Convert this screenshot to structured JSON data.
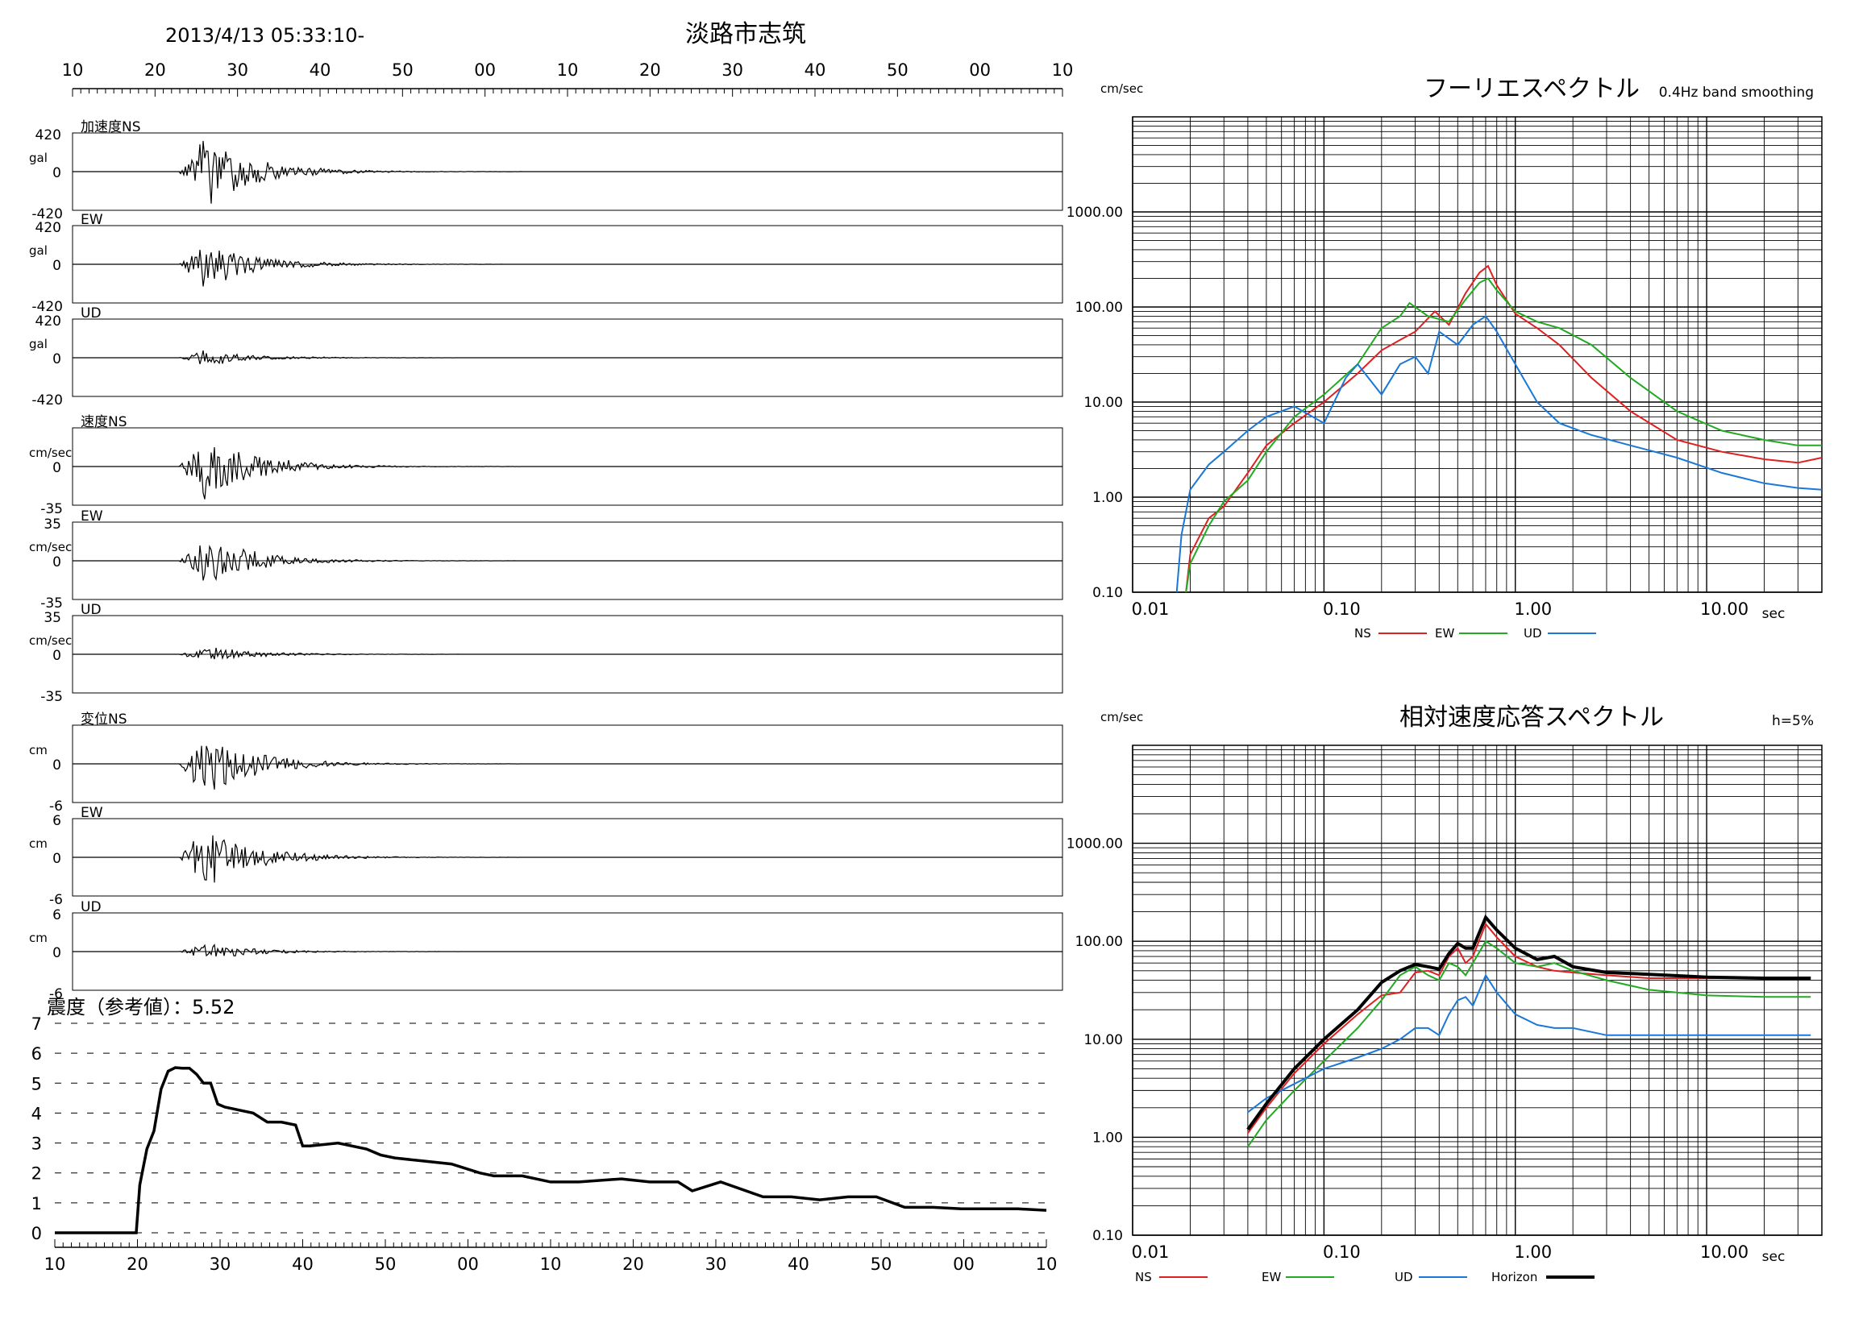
{
  "header": {
    "timestamp": "2013/4/13 05:33:10-",
    "station": "淡路市志筑",
    "top_ticks": [
      "10",
      "20",
      "30",
      "40",
      "50",
      "00",
      "10",
      "20",
      "30",
      "40",
      "50",
      "00",
      "10"
    ]
  },
  "traces": [
    {
      "group_label": "加速度NS",
      "unit": "gal",
      "top": "420",
      "zero": "0",
      "bottom": "-420",
      "peak_amp": 0.95
    },
    {
      "group_label": "EW",
      "unit": "gal",
      "top": "420",
      "zero": "0",
      "bottom": "-420",
      "peak_amp": 0.68
    },
    {
      "group_label": "UD",
      "unit": "gal",
      "top": "420",
      "zero": "0",
      "bottom": "-420",
      "peak_amp": 0.22
    },
    {
      "group_label": "速度NS",
      "unit": "cm/sec",
      "top": "",
      "zero": "0",
      "bottom": "-35",
      "peak_amp": 0.95
    },
    {
      "group_label": "EW",
      "unit": "cm/sec",
      "top": "35",
      "zero": "0",
      "bottom": "-35",
      "peak_amp": 0.7
    },
    {
      "group_label": "UD",
      "unit": "cm/sec",
      "top": "35",
      "zero": "0",
      "bottom": "-35",
      "peak_amp": 0.22
    },
    {
      "group_label": "変位NS",
      "unit": "cm",
      "top": "",
      "zero": "0",
      "bottom": "-6",
      "peak_amp": 0.9
    },
    {
      "group_label": "EW",
      "unit": "cm",
      "top": "6",
      "zero": "0",
      "bottom": "-6",
      "peak_amp": 0.85
    },
    {
      "group_label": "UD",
      "unit": "cm",
      "top": "6",
      "zero": "0",
      "bottom": "-6",
      "peak_amp": 0.22
    }
  ],
  "intensity": {
    "title": "震度（参考値）：5.52",
    "y_ticks": [
      "0",
      "1",
      "2",
      "3",
      "4",
      "5",
      "6",
      "7"
    ],
    "x_ticks": [
      "10",
      "20",
      "30",
      "40",
      "50",
      "00",
      "10",
      "20",
      "30",
      "40",
      "50",
      "00",
      "10"
    ]
  },
  "chart_data": [
    {
      "type": "line",
      "title": "震度（参考値）：5.52",
      "x_labels": [
        "10",
        "20",
        "30",
        "40",
        "50",
        "00",
        "10",
        "20",
        "30",
        "40",
        "50",
        "00",
        "10"
      ],
      "ylim": [
        0,
        7
      ],
      "x": [
        10,
        20,
        21.5,
        22,
        23,
        24,
        25,
        26,
        27,
        28,
        29,
        30,
        31,
        32,
        33,
        34,
        36,
        38,
        40,
        42,
        44,
        45,
        46,
        50,
        54,
        56,
        58,
        62,
        66,
        70,
        72,
        76,
        80,
        84,
        90,
        94,
        98,
        100,
        104,
        110,
        114,
        118,
        122,
        124,
        126,
        130,
        134,
        138,
        140,
        142,
        144,
        146,
        150
      ],
      "values": [
        0,
        0,
        0,
        1.6,
        2.8,
        3.4,
        4.8,
        5.4,
        5.52,
        5.5,
        5.5,
        5.3,
        5.0,
        5.0,
        4.3,
        4.2,
        4.1,
        4.0,
        3.7,
        3.7,
        3.6,
        2.9,
        2.9,
        3.0,
        2.8,
        2.6,
        2.5,
        2.4,
        2.3,
        2.0,
        1.9,
        1.9,
        1.7,
        1.7,
        1.8,
        1.7,
        1.7,
        1.4,
        1.7,
        1.2,
        1.2,
        1.1,
        1.2,
        1.2,
        1.2,
        0.85,
        0.85,
        0.8,
        0.8,
        0.8,
        0.8,
        0.8,
        0.75
      ]
    },
    {
      "type": "line",
      "title": "フーリエスペクトル",
      "subtitle": "0.4Hz band smoothing",
      "ylabel": "cm/sec",
      "xlabel": "sec",
      "log_x": true,
      "log_y": true,
      "xlim": [
        0.01,
        40
      ],
      "ylim": [
        0.1,
        10000
      ],
      "x_ticks": [
        "0.01",
        "0.10",
        "1.00",
        "10.00"
      ],
      "y_ticks": [
        "0.10",
        "1.00",
        "10.00",
        "100.00",
        "1000.00"
      ],
      "series": [
        {
          "name": "NS",
          "color": "#e02020",
          "x": [
            0.019,
            0.02,
            0.025,
            0.03,
            0.04,
            0.05,
            0.07,
            0.1,
            0.15,
            0.2,
            0.25,
            0.3,
            0.38,
            0.45,
            0.55,
            0.65,
            0.72,
            0.8,
            1.0,
            1.3,
            1.7,
            2.5,
            4,
            7,
            12,
            20,
            30,
            40
          ],
          "y": [
            0.1,
            0.25,
            0.6,
            0.8,
            1.8,
            3.5,
            6,
            10,
            20,
            35,
            45,
            55,
            90,
            65,
            140,
            230,
            270,
            170,
            85,
            60,
            40,
            18,
            8,
            4,
            3,
            2.5,
            2.3,
            2.6
          ]
        },
        {
          "name": "EW",
          "color": "#22aa22",
          "x": [
            0.019,
            0.02,
            0.025,
            0.03,
            0.04,
            0.05,
            0.07,
            0.1,
            0.15,
            0.2,
            0.25,
            0.28,
            0.35,
            0.45,
            0.55,
            0.65,
            0.72,
            0.8,
            1.0,
            1.3,
            1.7,
            2.5,
            4,
            7,
            12,
            20,
            30,
            40
          ],
          "y": [
            0.1,
            0.2,
            0.5,
            0.9,
            1.5,
            3,
            7,
            12,
            25,
            60,
            80,
            110,
            80,
            70,
            120,
            180,
            200,
            150,
            90,
            70,
            60,
            40,
            18,
            8,
            5,
            4,
            3.5,
            3.5
          ]
        },
        {
          "name": "UD",
          "color": "#1a78d8",
          "x": [
            0.017,
            0.018,
            0.02,
            0.025,
            0.03,
            0.04,
            0.05,
            0.07,
            0.1,
            0.13,
            0.15,
            0.2,
            0.25,
            0.3,
            0.35,
            0.4,
            0.5,
            0.6,
            0.7,
            0.8,
            1.0,
            1.3,
            1.7,
            2.5,
            4,
            7,
            12,
            20,
            30,
            40
          ],
          "y": [
            0.1,
            0.4,
            1.2,
            2.2,
            3,
            5,
            7,
            9,
            6,
            18,
            25,
            12,
            25,
            30,
            20,
            55,
            40,
            65,
            80,
            55,
            25,
            10,
            6,
            4.5,
            3.5,
            2.6,
            1.8,
            1.4,
            1.25,
            1.2
          ]
        }
      ]
    },
    {
      "type": "line",
      "title": "相対速度応答スペクトル",
      "subtitle": "h=5%",
      "ylabel": "cm/sec",
      "xlabel": "sec",
      "log_x": true,
      "log_y": true,
      "xlim": [
        0.01,
        40
      ],
      "ylim": [
        0.1,
        10000
      ],
      "x_ticks": [
        "0.01",
        "0.10",
        "1.00",
        "10.00"
      ],
      "y_ticks": [
        "0.10",
        "1.00",
        "10.00",
        "100.00",
        "1000.00"
      ],
      "series": [
        {
          "name": "NS",
          "color": "#e02020",
          "x": [
            0.04,
            0.05,
            0.07,
            0.1,
            0.15,
            0.2,
            0.25,
            0.3,
            0.35,
            0.4,
            0.45,
            0.5,
            0.55,
            0.6,
            0.7,
            0.8,
            1.0,
            1.3,
            1.6,
            2,
            3,
            5,
            10,
            20,
            35
          ],
          "y": [
            1.1,
            2,
            4.5,
            9,
            18,
            28,
            30,
            48,
            50,
            45,
            70,
            85,
            60,
            70,
            150,
            110,
            70,
            55,
            50,
            48,
            45,
            42,
            42,
            42,
            42
          ]
        },
        {
          "name": "EW",
          "color": "#22aa22",
          "x": [
            0.04,
            0.05,
            0.07,
            0.1,
            0.15,
            0.2,
            0.25,
            0.3,
            0.35,
            0.4,
            0.45,
            0.5,
            0.55,
            0.6,
            0.7,
            0.8,
            1.0,
            1.3,
            1.6,
            2,
            3,
            5,
            10,
            20,
            35
          ],
          "y": [
            0.8,
            1.5,
            3,
            6,
            13,
            25,
            45,
            55,
            45,
            40,
            60,
            55,
            45,
            60,
            100,
            85,
            60,
            55,
            60,
            50,
            40,
            32,
            28,
            27,
            27
          ]
        },
        {
          "name": "UD",
          "color": "#1a78d8",
          "x": [
            0.04,
            0.05,
            0.07,
            0.1,
            0.15,
            0.2,
            0.25,
            0.3,
            0.35,
            0.4,
            0.45,
            0.5,
            0.55,
            0.6,
            0.7,
            0.8,
            1.0,
            1.3,
            1.6,
            2,
            3,
            5,
            10,
            20,
            35
          ],
          "y": [
            1.8,
            2.5,
            3.5,
            5,
            6.5,
            8,
            10,
            13,
            13,
            11,
            18,
            25,
            27,
            22,
            45,
            30,
            18,
            14,
            13,
            13,
            11,
            11,
            11,
            11,
            11
          ]
        },
        {
          "name": "Horizon",
          "color": "#000000",
          "x": [
            0.04,
            0.05,
            0.07,
            0.1,
            0.15,
            0.2,
            0.25,
            0.3,
            0.35,
            0.4,
            0.45,
            0.5,
            0.55,
            0.6,
            0.7,
            0.8,
            1.0,
            1.3,
            1.6,
            2,
            3,
            5,
            10,
            20,
            35
          ],
          "y": [
            1.2,
            2.2,
            5,
            10,
            20,
            38,
            50,
            58,
            55,
            52,
            75,
            95,
            85,
            85,
            175,
            130,
            85,
            65,
            70,
            55,
            48,
            46,
            43,
            42,
            42
          ]
        }
      ]
    }
  ]
}
